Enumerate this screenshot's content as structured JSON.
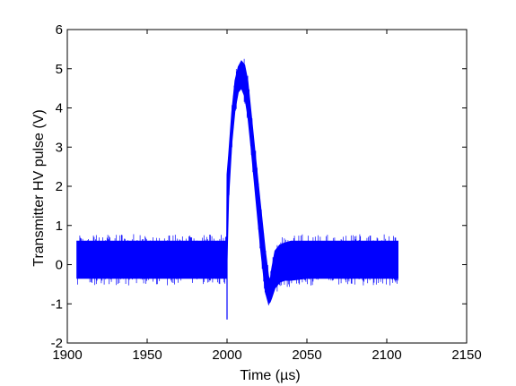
{
  "chart_data": {
    "type": "line",
    "title": "",
    "xlabel": "Time (µs)",
    "ylabel": "Transmitter HV pulse (V)",
    "xlim": [
      1900,
      2150
    ],
    "ylim": [
      -2,
      6
    ],
    "xticks": [
      1900,
      1950,
      2000,
      2050,
      2100,
      2150
    ],
    "yticks": [
      -2,
      -1,
      0,
      1,
      2,
      3,
      4,
      5,
      6
    ],
    "grid": false,
    "legend": "none",
    "series": [
      {
        "color": "#0000ff",
        "noise_band": [
          -0.35,
          0.6
        ],
        "envelope": {
          "x": [
            1906,
            1999.8,
            2000,
            2001,
            2003,
            2005,
            2007,
            2009,
            2011,
            2013,
            2015,
            2018,
            2021,
            2024,
            2026,
            2027,
            2028,
            2030,
            2033,
            2036,
            2040,
            2050,
            2070,
            2090,
            2107
          ],
          "center": [
            0.1,
            0.1,
            0.8,
            2.2,
            3.5,
            4.3,
            4.75,
            4.85,
            4.75,
            4.3,
            3.5,
            2.25,
            0.95,
            -0.2,
            -0.75,
            -0.8,
            -0.55,
            -0.25,
            -0.1,
            0.0,
            0.05,
            0.08,
            0.08,
            0.08,
            0.08
          ],
          "lower": [
            -0.35,
            -0.35,
            0.1,
            1.7,
            3.1,
            3.95,
            4.4,
            4.5,
            4.3,
            3.8,
            3.0,
            1.7,
            0.4,
            -0.7,
            -1.0,
            -0.95,
            -0.85,
            -0.6,
            -0.45,
            -0.4,
            -0.4,
            -0.35,
            -0.35,
            -0.35,
            -0.35
          ],
          "upper": [
            0.6,
            0.6,
            2.3,
            2.8,
            3.9,
            4.7,
            5.05,
            5.2,
            5.1,
            4.7,
            3.9,
            2.7,
            1.5,
            0.35,
            -0.3,
            -0.4,
            -0.1,
            0.35,
            0.5,
            0.55,
            0.6,
            0.6,
            0.6,
            0.6,
            0.6
          ]
        },
        "spikes": [
          {
            "x": 2000,
            "y": -1.4
          }
        ]
      }
    ]
  }
}
